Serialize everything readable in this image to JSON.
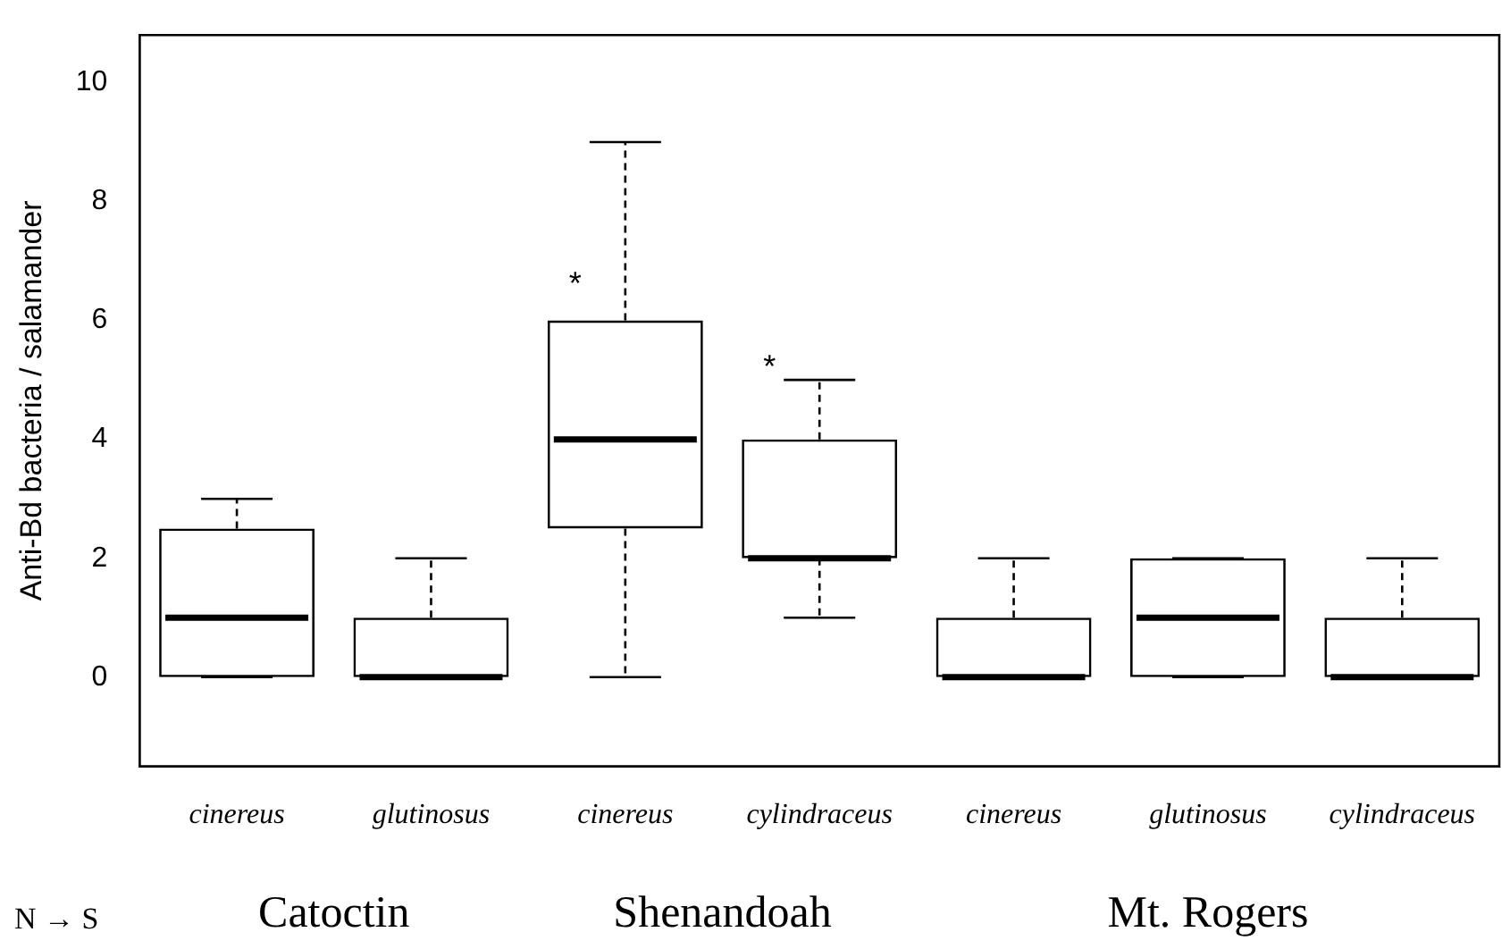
{
  "chart_data": {
    "type": "box",
    "ylabel": "Anti-Bd bacteria / salamander",
    "categories": [
      "cinereus",
      "glutinosus",
      "cinereus",
      "cylindraceus",
      "cinereus",
      "glutinosus",
      "cylindraceus"
    ],
    "boxes": [
      {
        "low": 0,
        "q1": 0,
        "median": 1,
        "q3": 2.5,
        "high": 3
      },
      {
        "low": 0,
        "q1": 0,
        "median": 0,
        "q3": 1,
        "high": 2
      },
      {
        "low": 0,
        "q1": 2.5,
        "median": 4,
        "q3": 6,
        "high": 9
      },
      {
        "low": 1,
        "q1": 2,
        "median": 2,
        "q3": 4,
        "high": 5
      },
      {
        "low": 0,
        "q1": 0,
        "median": 0,
        "q3": 1,
        "high": 2
      },
      {
        "low": 0,
        "q1": 0,
        "median": 1,
        "q3": 2,
        "high": 2
      },
      {
        "low": 0,
        "q1": 0,
        "median": 0,
        "q3": 1,
        "high": 2
      }
    ],
    "color": "#000000",
    "ylim": [
      -1.5,
      10.8
    ],
    "yticks": [
      0,
      2,
      4,
      6,
      8,
      10
    ],
    "grid": false,
    "legend": false,
    "annotations": [
      "*",
      "*",
      "N → S",
      "Catoctin",
      "Shenandoah",
      "Mt. Rogers"
    ]
  }
}
